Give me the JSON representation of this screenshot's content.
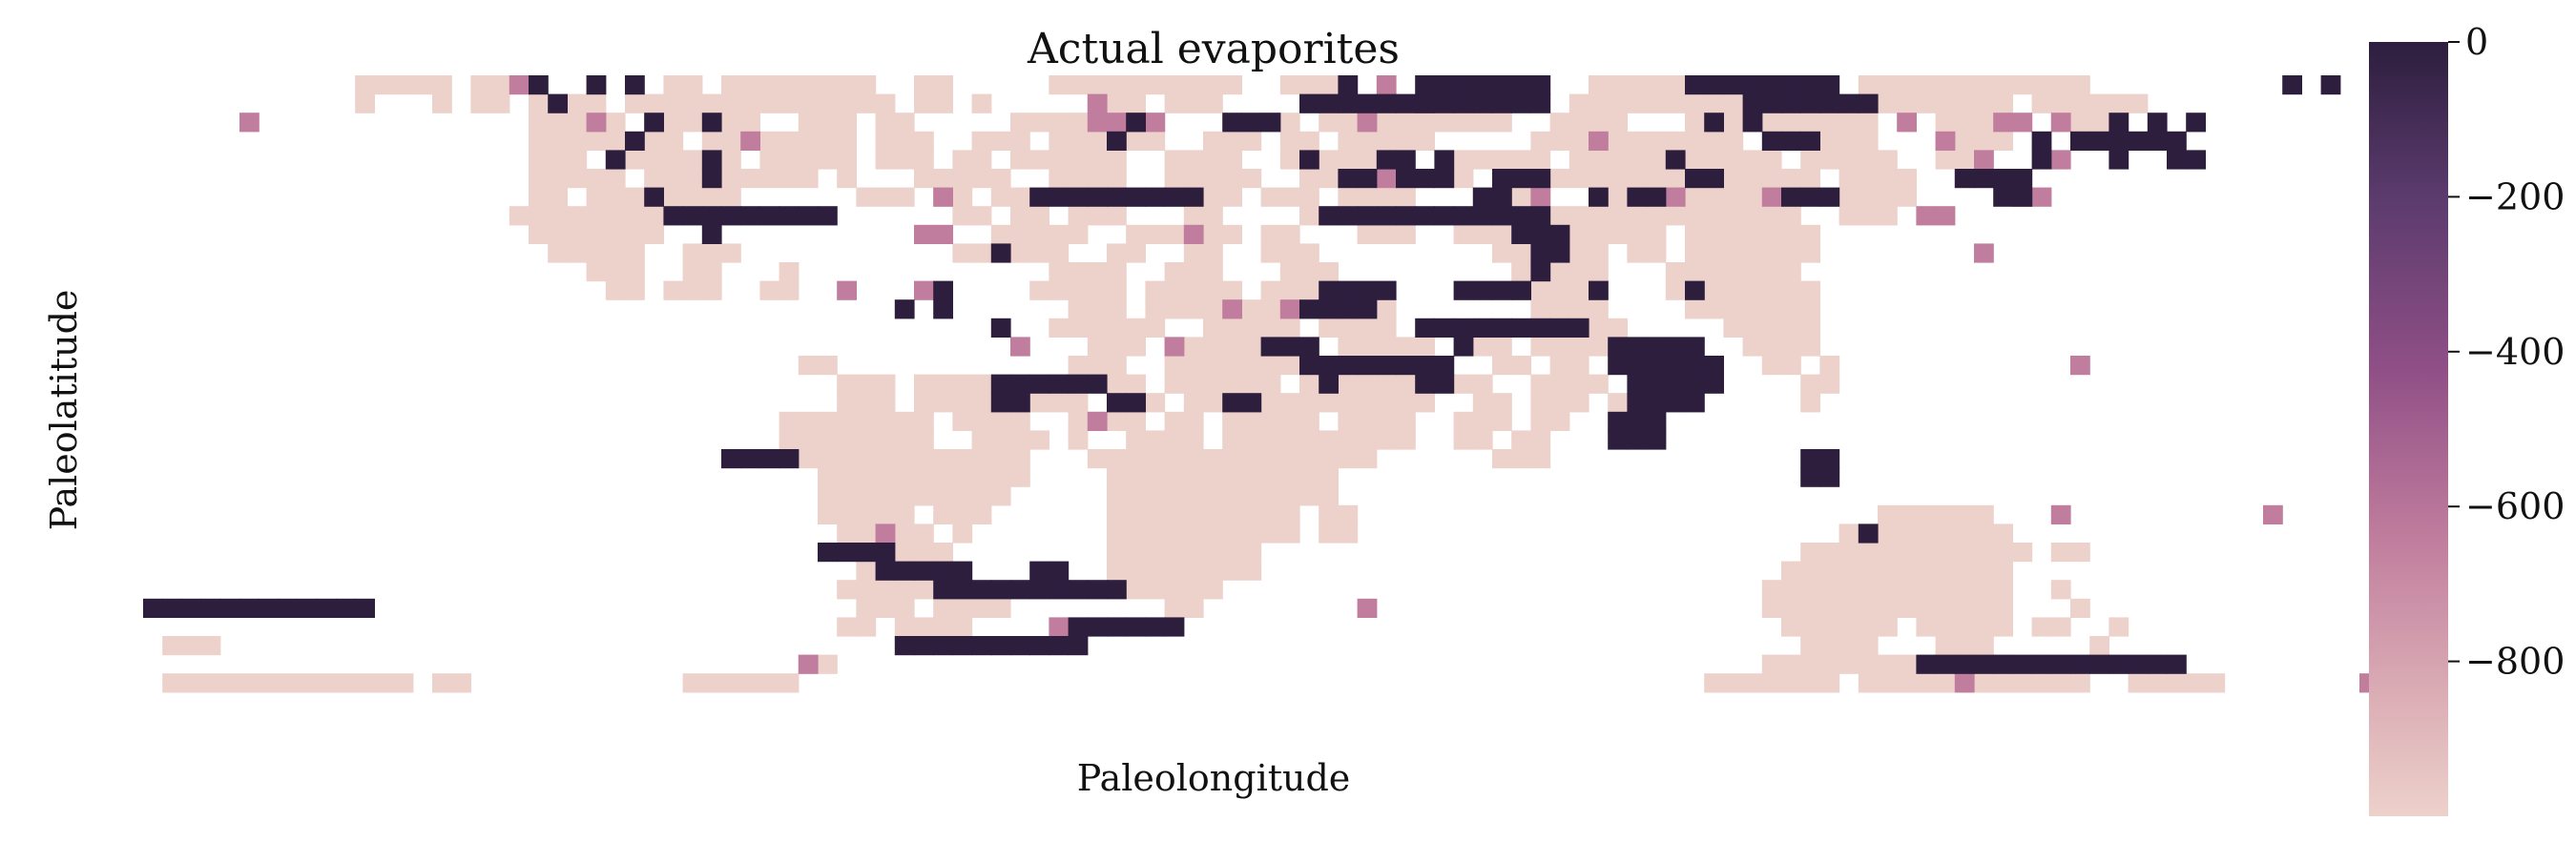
{
  "chart_data": {
    "type": "heatmap",
    "title": "Actual evaporites",
    "xlabel": "Paleolongitude",
    "ylabel": "Paleolatitude",
    "colorbar": {
      "ticks": [
        "0",
        "−200",
        "−400",
        "−600",
        "−800"
      ],
      "tick_values": [
        0,
        -200,
        -400,
        -600,
        -800
      ],
      "range": [
        -1000,
        0
      ],
      "colors": {
        "top": "#2d1e3e",
        "mid_dark": "#5b3b6d",
        "mid": "#8f4f86",
        "mid_light": "#c07d9d",
        "light": "#ddb1b7",
        "bottom": "#edd1cb"
      }
    },
    "grid": false,
    "grid_shape": {
      "rows": 36,
      "cols": 116
    },
    "legend": "colorbar at right",
    "cell_value_levels": {
      "land": -1000,
      "moderate": -600,
      "evaporite": 0
    },
    "cells": {
      "land": [
        "0:11-15",
        "0:17-18",
        "0:27-28",
        "0:30-37",
        "0:40-41",
        "0:47-56",
        "0:59-62",
        "0:67-70",
        "0:75-84",
        "0:89-100",
        "1:11",
        "1:15",
        "1:17-18",
        "1:20-23",
        "1:25-38",
        "1:40-41",
        "1:43",
        "1:49-51",
        "1:53-55",
        "1:60-61",
        "1:67-70",
        "1:74-87",
        "1:89-96",
        "1:98-100",
        "1:101-103",
        "2:20-24",
        "2:26-31",
        "2:34-36",
        "2:38-39",
        "2:45-48",
        "2:50-52",
        "2:58-59",
        "2:61-62",
        "2:64-70",
        "2:73-76",
        "2:80-89",
        "2:93-96",
        "2:99-102",
        "3:20-24",
        "3:26-27",
        "3:29-36",
        "3:38-40",
        "3:43-45",
        "3:47-52",
        "3:55-57",
        "3:59-60",
        "3:62-66",
        "3:72-82",
        "3:85-89",
        "3:93-96",
        "4:20-22",
        "4:24-30",
        "4:32-36",
        "4:38-40",
        "4:42-43",
        "4:45-50",
        "4:53-56",
        "4:59-63",
        "4:68-72",
        "4:74-84",
        "4:86-90",
        "4:93-95",
        "5:20-24",
        "5:26-34",
        "5:36-36",
        "5:40-44",
        "5:47-50",
        "5:53-57",
        "5:60-62",
        "5:65-68",
        "5:71-79",
        "5:81-86",
        "5:88-91",
        "5:94-96",
        "6:20-21",
        "6:23-30",
        "6:37-39",
        "6:41-42",
        "6:44-46",
        "6:50-56",
        "6:58-60",
        "6:62-65",
        "6:69-72",
        "6:75-85",
        "6:87-91",
        "7:19-26",
        "7:42-43",
        "7:45-46",
        "7:48-50",
        "7:54-55",
        "7:60-64",
        "7:70-85",
        "7:88-90",
        "8:20-26",
        "8:44-48",
        "8:51-56",
        "8:58-59",
        "8:63-65",
        "8:68-70",
        "8:71-78",
        "8:80-86",
        "9:21-25",
        "9:28-30",
        "9:42-43",
        "9:45-47",
        "9:50-51",
        "9:54-55",
        "9:58-60",
        "9:70-75",
        "9:77-78",
        "9:80-86",
        "10:23-25",
        "10:28-29",
        "10:33-33",
        "10:47-50",
        "10:53-55",
        "10:59-61",
        "10:71-75",
        "10:79-85",
        "11:24-25",
        "11:27-29",
        "11:32-33",
        "11:46-50",
        "11:52-56",
        "11:58-64",
        "11:71-75",
        "11:79-86",
        "12:48-50",
        "12:52-58",
        "12:60-64",
        "12:72-75",
        "12:80-86",
        "13:47-52",
        "13:55-59",
        "13:61-64",
        "13:69-70",
        "13:72-76",
        "13:82-86",
        "14:49-51",
        "14:53-60",
        "14:62-66",
        "14:69-70",
        "14:72-75",
        "14:83-86",
        "15:34-35",
        "15:48-50",
        "15:53-60",
        "15:62-67",
        "15:70-71",
        "15:73-74",
        "15:84-85",
        "15:87-87",
        "16:36-38",
        "16:40-43",
        "16:47-51",
        "16:53-58",
        "16:60-66",
        "16:68-69",
        "16:72-75",
        "16:86-87",
        "17:36-38",
        "17:40-44",
        "17:46-48",
        "17:50-52",
        "17:54-56",
        "17:58-66",
        "17:69-70",
        "17:72-74",
        "17:76-76",
        "17:86-86",
        "18:33-40",
        "18:42-45",
        "18:48-51",
        "18:53-54",
        "18:56-60",
        "18:62-65",
        "18:68-70",
        "18:72-73",
        "19:33-40",
        "19:43-46",
        "19:48-48",
        "19:51-54",
        "19:56-65",
        "19:68-69",
        "19:71-72",
        "20:34-45",
        "20:49-63",
        "20:70-72",
        "21:35-45",
        "21:50-61",
        "22:35-44",
        "22:50-61",
        "23:35-39",
        "23:41-43",
        "23:50-59",
        "23:61-62",
        "23:90-95",
        "24:36-40",
        "24:42-42",
        "24:50-59",
        "24:61-62",
        "24:88-96",
        "25:37-41",
        "25:50-57",
        "25:86-97",
        "25:99-100",
        "26:37-40",
        "26:50-57",
        "26:85-96",
        "27:36-40",
        "27:42-42",
        "27:50-55",
        "27:84-96",
        "27:99-99",
        "28:37-39",
        "28:41-44",
        "28:53-54",
        "28:84-96",
        "28:100-100",
        "29:36-37",
        "29:39-42",
        "29:85-90",
        "29:92-96",
        "29:98-99",
        "29:102-102",
        "30:1-3",
        "30:86-89",
        "30:93-95",
        "30:101-101",
        "31:34-35",
        "31:84-96",
        "31:98-102",
        "32:1-13",
        "32:15-16",
        "32:28-33",
        "32:81-87",
        "32:89-100",
        "32:103-107"
      ],
      "moderate": [
        "0:19",
        "0:64",
        "1:49",
        "1:66",
        "2:5",
        "2:23",
        "2:49",
        "2:50",
        "2:51",
        "2:52",
        "2:63",
        "2:91",
        "2:96",
        "2:97",
        "2:99",
        "3:31",
        "3:75",
        "3:93",
        "4:95",
        "4:99",
        "5:64",
        "6:41",
        "6:72",
        "6:79",
        "6:84",
        "6:97",
        "6:98",
        "7:92",
        "7:93",
        "8:40",
        "8:41",
        "8:54",
        "9:95",
        "11:36",
        "11:40",
        "12:56",
        "12:59",
        "14:45",
        "14:53",
        "15:100",
        "18:49",
        "23:99",
        "23:110",
        "24:38",
        "28:63",
        "29:47",
        "31:34",
        "32:94",
        "32:115"
      ],
      "evaporite": [
        "0:20",
        "0:23",
        "0:25",
        "0:62",
        "0:66",
        "0:67",
        "0:68",
        "0:69",
        "0:70",
        "0:71",
        "0:72",
        "0:80",
        "0:81",
        "0:82",
        "0:83",
        "0:84",
        "0:85",
        "0:86",
        "0:87",
        "0:111",
        "0:113",
        "1:21",
        "1:60",
        "1:61",
        "1:62",
        "1:63",
        "1:64",
        "1:65",
        "1:66",
        "1:67",
        "1:68",
        "1:69",
        "1:70",
        "1:71",
        "1:72",
        "1:83",
        "1:84",
        "1:85",
        "1:86",
        "1:87",
        "1:88",
        "1:89",
        "2:26",
        "2:29",
        "2:51",
        "2:56",
        "2:57",
        "2:58",
        "2:81",
        "2:83",
        "2:102",
        "2:104",
        "2:106",
        "3:25",
        "3:50",
        "3:84",
        "3:85",
        "3:86",
        "3:98",
        "3:100",
        "3:101",
        "3:102",
        "3:103",
        "3:104",
        "3:105",
        "4:24",
        "4:29",
        "4:60",
        "4:64",
        "4:65",
        "4:67",
        "4:79",
        "4:98",
        "4:102",
        "4:105",
        "4:106",
        "5:29",
        "5:62",
        "5:63",
        "5:65",
        "5:66",
        "5:67",
        "5:70",
        "5:71",
        "5:72",
        "5:80",
        "5:81",
        "5:94",
        "5:95",
        "5:96",
        "5:97",
        "6:26",
        "6:46",
        "6:47",
        "6:48",
        "6:49",
        "6:50",
        "6:51",
        "6:52",
        "6:53",
        "6:54",
        "6:69",
        "6:70",
        "6:75",
        "6:77",
        "6:78",
        "6:85",
        "6:86",
        "6:87",
        "6:96",
        "6:97",
        "7:27",
        "7:28",
        "7:29",
        "7:30",
        "7:31",
        "7:32",
        "7:33",
        "7:34",
        "7:35",
        "7:61",
        "7:62",
        "7:63",
        "7:64",
        "7:65",
        "7:66",
        "7:67",
        "7:68",
        "7:69",
        "7:70",
        "7:71",
        "7:72",
        "8:29",
        "8:71",
        "8:72",
        "8:73",
        "9:44",
        "9:72",
        "9:73",
        "10:72",
        "11:41",
        "11:61",
        "11:62",
        "11:63",
        "11:64",
        "11:68",
        "11:69",
        "11:70",
        "11:71",
        "11:75",
        "11:80",
        "12:39",
        "12:41",
        "12:60",
        "12:61",
        "12:62",
        "12:63",
        "13:44",
        "13:66",
        "13:67",
        "13:68",
        "13:69",
        "13:70",
        "13:71",
        "13:72",
        "13:73",
        "13:74",
        "14:58",
        "14:59",
        "14:60",
        "14:68",
        "14:76",
        "14:77",
        "14:78",
        "14:79",
        "14:80",
        "15:60",
        "15:61",
        "15:62",
        "15:63",
        "15:64",
        "15:65",
        "15:66",
        "15:67",
        "15:76",
        "15:77",
        "15:78",
        "15:79",
        "15:80",
        "15:81",
        "16:44",
        "16:45",
        "16:46",
        "16:47",
        "16:48",
        "16:49",
        "16:61",
        "16:66",
        "16:67",
        "16:77",
        "16:78",
        "16:79",
        "16:80",
        "16:81",
        "17:44",
        "17:45",
        "17:50",
        "17:51",
        "17:56",
        "17:57",
        "17:77",
        "17:78",
        "17:79",
        "17:80",
        "18:76",
        "18:77",
        "18:78",
        "19:76",
        "19:77",
        "19:78",
        "20:30",
        "20:31",
        "20:32",
        "20:33",
        "20:86",
        "20:87",
        "21:86",
        "21:87",
        "24:89",
        "25:35",
        "25:36",
        "25:37",
        "25:38",
        "26:38",
        "26:39",
        "26:40",
        "26:41",
        "26:42",
        "26:46",
        "26:47",
        "27:41",
        "27:42",
        "27:43",
        "27:44",
        "27:45",
        "27:46",
        "27:47",
        "27:48",
        "27:49",
        "27:50",
        "28:0",
        "28:1",
        "28:2",
        "28:3",
        "28:4",
        "28:5",
        "28:6",
        "28:7",
        "28:8",
        "28:9",
        "28:10",
        "28:11",
        "29:48",
        "29:49",
        "29:50",
        "29:51",
        "29:52",
        "29:53",
        "30:39",
        "30:40",
        "30:41",
        "30:42",
        "30:43",
        "30:44",
        "30:45",
        "30:46",
        "30:47",
        "30:48",
        "31:92",
        "31:93",
        "31:94",
        "31:95",
        "31:96",
        "31:97",
        "31:98",
        "31:99",
        "31:100",
        "31:101",
        "31:102",
        "31:103",
        "31:104",
        "31:105"
      ]
    }
  }
}
